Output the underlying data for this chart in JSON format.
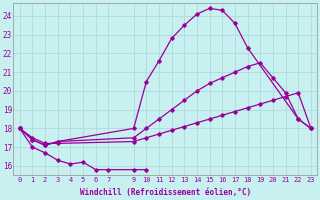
{
  "xlabel": "Windchill (Refroidissement éolien,°C)",
  "background_color": "#c8f0f0",
  "grid_color": "#b0dede",
  "line_color": "#990099",
  "ylim": [
    15.5,
    24.7
  ],
  "xlim": [
    -0.5,
    23.5
  ],
  "yticks": [
    16,
    17,
    18,
    19,
    20,
    21,
    22,
    23,
    24
  ],
  "xtick_labels": [
    "0",
    "1",
    "2",
    "3",
    "4",
    "5",
    "6",
    "7",
    "9",
    "10",
    "11",
    "12",
    "13",
    "14",
    "15",
    "16",
    "17",
    "18",
    "19",
    "20",
    "21",
    "22",
    "23"
  ],
  "xtick_positions": [
    0,
    1,
    2,
    3,
    4,
    5,
    6,
    7,
    9,
    10,
    11,
    12,
    13,
    14,
    15,
    16,
    17,
    18,
    19,
    20,
    21,
    22,
    23
  ],
  "series": [
    {
      "x": [
        0,
        1,
        2,
        3,
        9,
        10,
        11,
        12,
        13,
        14,
        15,
        16,
        17,
        18,
        22,
        23
      ],
      "y": [
        18.0,
        17.4,
        17.1,
        17.3,
        18.0,
        20.5,
        21.6,
        22.8,
        23.5,
        24.1,
        24.4,
        24.3,
        23.6,
        22.3,
        18.5,
        18.0
      ]
    },
    {
      "x": [
        0,
        1,
        2,
        3,
        9,
        10,
        11,
        12,
        13,
        14,
        15,
        16,
        17,
        18,
        19,
        20,
        21,
        22,
        23
      ],
      "y": [
        18.0,
        17.4,
        17.1,
        17.3,
        17.5,
        18.0,
        18.5,
        19.0,
        19.5,
        20.0,
        20.4,
        20.7,
        21.0,
        21.3,
        21.5,
        20.7,
        19.9,
        18.5,
        18.0
      ]
    },
    {
      "x": [
        0,
        1,
        2,
        3,
        9,
        10,
        11,
        12,
        13,
        14,
        15,
        16,
        17,
        18,
        19,
        20,
        21,
        22,
        23
      ],
      "y": [
        18.0,
        17.5,
        17.2,
        17.2,
        17.3,
        17.5,
        17.7,
        17.9,
        18.1,
        18.3,
        18.5,
        18.7,
        18.9,
        19.1,
        19.3,
        19.5,
        19.7,
        19.9,
        18.0
      ]
    },
    {
      "x": [
        0,
        1,
        2,
        3,
        4,
        5,
        6,
        7,
        9,
        10
      ],
      "y": [
        18.0,
        17.0,
        16.7,
        16.3,
        16.1,
        16.2,
        15.8,
        15.8,
        15.8,
        15.8
      ]
    }
  ]
}
